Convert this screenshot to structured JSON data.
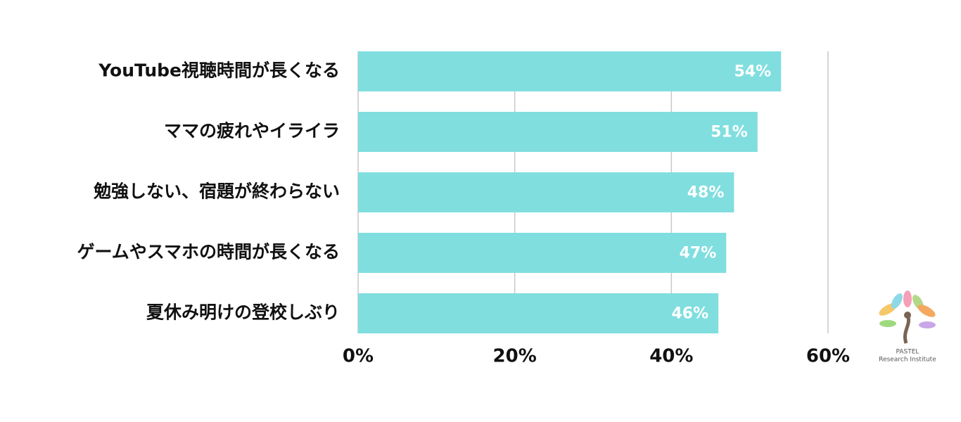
{
  "chart_data": {
    "type": "bar",
    "orientation": "horizontal",
    "categories": [
      "YouTube視聴時間が長くなる",
      "ママの疲れやイライラ",
      "勉強しない、宿題が終わらない",
      "ゲームやスマホの時間が長くなる",
      "夏休み明けの登校しぶり"
    ],
    "values": [
      54,
      51,
      48,
      47,
      46
    ],
    "value_labels": [
      "54%",
      "51%",
      "48%",
      "47%",
      "46%"
    ],
    "color": "#80dedf",
    "xlim": [
      0,
      60
    ],
    "xticks": [
      {
        "value": 0,
        "label": "0%"
      },
      {
        "value": 20,
        "label": "20%"
      },
      {
        "value": 40,
        "label": "40%"
      },
      {
        "value": 60,
        "label": "60%"
      }
    ],
    "grid": true
  },
  "logo": {
    "line1": "PASTEL",
    "line2": "Research Institute"
  }
}
